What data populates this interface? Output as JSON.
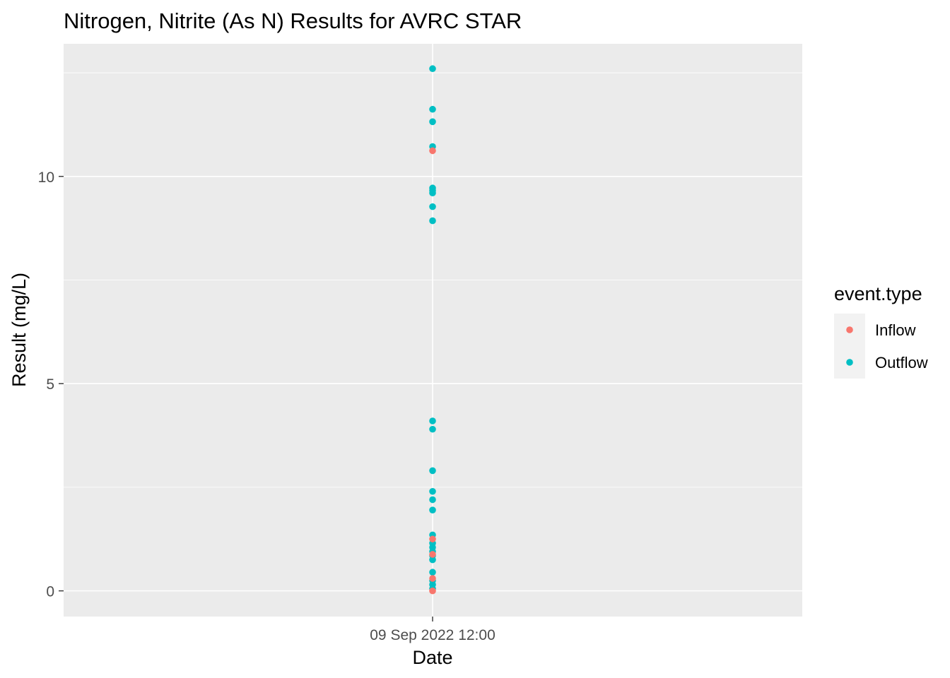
{
  "chart_data": {
    "type": "scatter",
    "title": "Nitrogen, Nitrite  (As N) Results for AVRC STAR",
    "xlabel": "Date",
    "ylabel": "Result (mg/L)",
    "ylim": [
      -0.62,
      13.2
    ],
    "y_ticks": [
      0,
      5,
      10
    ],
    "x_ticks": [
      "09 Sep 2022 12:00"
    ],
    "grid": true,
    "legend_position": "right",
    "legend": {
      "title": "event.type",
      "entries": [
        {
          "name": "Inflow",
          "color": "#F8766D"
        },
        {
          "name": "Outflow",
          "color": "#00BFC4"
        }
      ]
    },
    "series": [
      {
        "name": "Outflow",
        "color": "#00BFC4",
        "x": "09 Sep 2022 12:00",
        "values": [
          12.6,
          11.62,
          11.32,
          10.72,
          9.72,
          9.66,
          9.6,
          9.27,
          8.93,
          4.1,
          3.9,
          2.9,
          2.4,
          2.2,
          1.95,
          1.35,
          1.15,
          1.05,
          0.95,
          0.85,
          0.75,
          0.45,
          0.25,
          0.15,
          0.05
        ]
      },
      {
        "name": "Inflow",
        "color": "#F8766D",
        "x": "09 Sep 2022 12:00",
        "values": [
          10.62,
          1.25,
          0.88,
          0.3,
          0.0
        ]
      }
    ]
  }
}
